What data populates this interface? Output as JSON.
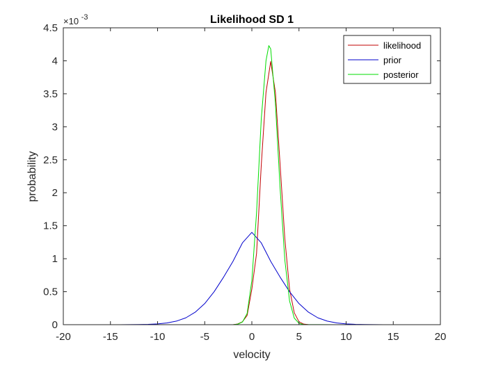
{
  "chart_data": {
    "type": "line",
    "title": "Likelihood SD 1",
    "xlabel": "velocity",
    "ylabel": "probability",
    "xlim": [
      -20,
      20
    ],
    "ylim": [
      0,
      4.5
    ],
    "y_exponent": "-3",
    "y_exponent_prefix": "×10",
    "xticks": [
      -20,
      -15,
      -10,
      -5,
      0,
      5,
      10,
      15,
      20
    ],
    "xtick_labels": [
      "-20",
      "-15",
      "-10",
      "-5",
      "0",
      "5",
      "10",
      "15",
      "20"
    ],
    "yticks": [
      0,
      0.5,
      1,
      1.5,
      2,
      2.5,
      3,
      3.5,
      4,
      4.5
    ],
    "ytick_labels": [
      "0",
      "0.5",
      "1",
      "1.5",
      "2",
      "2.5",
      "3",
      "3.5",
      "4",
      "4.5"
    ],
    "grid": false,
    "legend_position": "top-right",
    "series": [
      {
        "name": "likelihood",
        "color": "#c00000",
        "x": [
          -20,
          -5,
          -2,
          -1.5,
          -1,
          -0.5,
          0,
          0.5,
          1,
          1.5,
          2,
          2.5,
          3,
          3.5,
          4,
          4.5,
          5,
          5.5,
          6,
          9,
          20
        ],
        "y": [
          0,
          0,
          0,
          0.011,
          0.044,
          0.14,
          0.54,
          1.08,
          2.42,
          3.52,
          3.99,
          3.52,
          2.42,
          1.3,
          0.54,
          0.18,
          0.044,
          0.009,
          0.001,
          0,
          0
        ]
      },
      {
        "name": "prior",
        "color": "#0000cc",
        "x": [
          -20,
          -14,
          -12,
          -11,
          -10,
          -9,
          -8,
          -7,
          -6,
          -5,
          -4,
          -3,
          -2,
          -1,
          0,
          1,
          2,
          3,
          4,
          5,
          6,
          7,
          8,
          9,
          10,
          11,
          12,
          14,
          20
        ],
        "y": [
          0,
          0,
          0.002,
          0.005,
          0.012,
          0.026,
          0.054,
          0.104,
          0.19,
          0.32,
          0.5,
          0.72,
          0.96,
          1.24,
          1.4,
          1.24,
          0.96,
          0.72,
          0.5,
          0.32,
          0.19,
          0.104,
          0.054,
          0.026,
          0.012,
          0.005,
          0.002,
          0,
          0
        ]
      },
      {
        "name": "posterior",
        "color": "#00dd00",
        "x": [
          -20,
          -5,
          -2,
          -1.5,
          -1,
          -0.5,
          0,
          0.5,
          1,
          1.5,
          1.8,
          2,
          2.5,
          3,
          3.5,
          4,
          4.5,
          5,
          5.5,
          9,
          20
        ],
        "y": [
          0,
          0,
          0,
          0.008,
          0.04,
          0.17,
          0.67,
          1.7,
          3.12,
          4.0,
          4.23,
          4.18,
          3.35,
          2.06,
          0.98,
          0.36,
          0.1,
          0.02,
          0.003,
          0,
          0
        ]
      }
    ]
  }
}
